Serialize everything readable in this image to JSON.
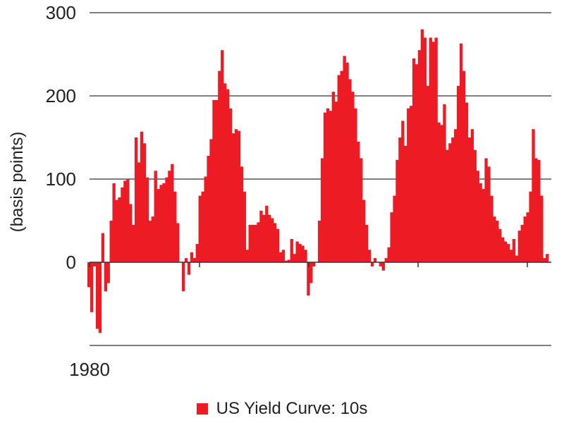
{
  "chart_data": {
    "type": "bar",
    "title": "",
    "xlabel": "",
    "ylabel": "(basis points)",
    "ylim": [
      -100,
      300
    ],
    "yticks": [
      0,
      100,
      200,
      300
    ],
    "x_tick_labels": [
      "1980"
    ],
    "grid": true,
    "legend": "bottom-center",
    "color": "#ed1c24",
    "series": [
      {
        "name": "US Yield Curve: 10s",
        "values": [
          -30,
          -60,
          -5,
          -80,
          -85,
          35,
          -35,
          -25,
          50,
          95,
          75,
          78,
          90,
          98,
          100,
          70,
          45,
          150,
          120,
          157,
          143,
          102,
          50,
          55,
          110,
          88,
          93,
          95,
          102,
          110,
          118,
          85,
          47,
          0,
          -35,
          5,
          -15,
          12,
          5,
          22,
          80,
          85,
          103,
          128,
          148,
          195,
          195,
          230,
          255,
          215,
          208,
          185,
          155,
          160,
          158,
          115,
          85,
          15,
          45,
          45,
          45,
          48,
          62,
          57,
          68,
          57,
          53,
          47,
          40,
          12,
          15,
          2,
          3,
          28,
          10,
          25,
          22,
          20,
          15,
          -40,
          -25,
          -5,
          0,
          50,
          125,
          180,
          185,
          182,
          205,
          193,
          225,
          230,
          248,
          240,
          220,
          205,
          185,
          145,
          125,
          75,
          45,
          15,
          -5,
          5,
          0,
          -5,
          -10,
          5,
          18,
          60,
          80,
          123,
          150,
          170,
          140,
          185,
          188,
          245,
          238,
          255,
          280,
          270,
          212,
          270,
          265,
          270,
          168,
          165,
          190,
          135,
          143,
          150,
          160,
          212,
          263,
          230,
          192,
          150,
          160,
          135,
          110,
          95,
          88,
          125,
          115,
          80,
          55,
          50,
          40,
          30,
          25,
          22,
          15,
          28,
          8,
          38,
          45,
          55,
          60,
          85,
          160,
          125,
          123,
          80,
          5,
          10
        ]
      }
    ]
  },
  "legend": {
    "swatch_color": "#ed1c24",
    "label": "US Yield Curve: 10s"
  }
}
